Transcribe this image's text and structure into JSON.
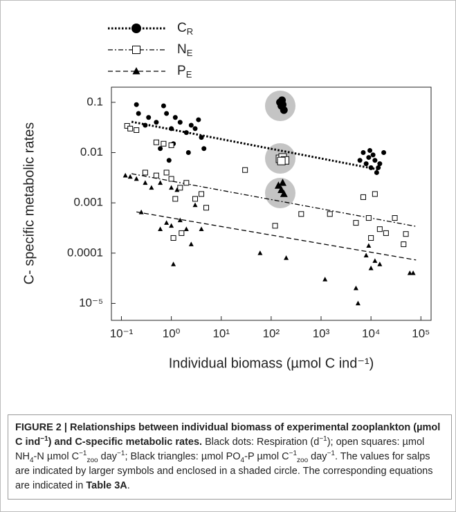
{
  "chart_data": {
    "type": "scatter",
    "x_label": "Individual biomass (µmol C ind⁻¹)",
    "y_label": "C- specific metabolic rates",
    "xscale": "log",
    "yscale": "log",
    "xlim": [
      0.063,
      160000
    ],
    "ylim": [
      4.6e-06,
      0.2
    ],
    "xticks": [
      {
        "value": 0.1,
        "label": "10⁻¹"
      },
      {
        "value": 1,
        "label": "10⁰"
      },
      {
        "value": 10,
        "label": "10¹"
      },
      {
        "value": 100,
        "label": "10²"
      },
      {
        "value": 1000,
        "label": "10³"
      },
      {
        "value": 10000,
        "label": "10⁴"
      },
      {
        "value": 100000,
        "label": "10⁵"
      }
    ],
    "yticks": [
      0.1,
      0.01,
      0.001,
      0.0001,
      {
        "value": 1e-05,
        "label": "10⁻⁵"
      }
    ],
    "legend": "top-left",
    "series": [
      {
        "name": "CR",
        "color": "#000000",
        "marker": "circle",
        "line": "dotted",
        "x": [
          0.2,
          0.22,
          0.3,
          0.35,
          0.5,
          0.7,
          0.8,
          1,
          1.2,
          1.5,
          2,
          2.5,
          3,
          3.5,
          4,
          0.6,
          0.9,
          1.1,
          2.2,
          4.5,
          7000,
          8000,
          9000,
          10000,
          11000,
          12000,
          13000,
          15000,
          18000,
          9500,
          6000,
          14000
        ],
        "values": [
          0.09,
          0.06,
          0.035,
          0.05,
          0.04,
          0.085,
          0.06,
          0.03,
          0.05,
          0.04,
          0.025,
          0.035,
          0.03,
          0.045,
          0.02,
          0.012,
          0.007,
          0.015,
          0.01,
          0.012,
          0.01,
          0.006,
          0.008,
          0.005,
          0.009,
          0.007,
          0.004,
          0.006,
          0.01,
          0.011,
          0.007,
          0.005
        ],
        "salp_x": [
          150,
          160,
          170,
          180,
          165
        ],
        "salp_values": [
          0.1,
          0.085,
          0.09,
          0.07,
          0.11
        ],
        "trend_x": [
          0.16,
          14000
        ],
        "trend_values": [
          0.041,
          0.0046
        ]
      },
      {
        "name": "NE",
        "color": "#000000",
        "marker": "square",
        "line": "dashdot",
        "x": [
          0.13,
          0.15,
          0.2,
          0.5,
          0.7,
          1,
          0.3,
          0.5,
          0.8,
          1,
          1.2,
          1.5,
          2,
          3,
          4,
          5,
          1.1,
          1.6,
          30,
          120,
          400,
          1500,
          5000,
          7000,
          9000,
          10000,
          12000,
          15000,
          20000,
          30000,
          50000,
          45000
        ],
        "values": [
          0.034,
          0.03,
          0.028,
          0.016,
          0.015,
          0.014,
          0.004,
          0.0035,
          0.004,
          0.003,
          0.0012,
          0.002,
          0.0025,
          0.0012,
          0.0015,
          0.0008,
          0.0002,
          0.00025,
          0.0045,
          0.00035,
          0.0006,
          0.0006,
          0.0004,
          0.0013,
          0.0005,
          0.0002,
          0.0015,
          0.0003,
          0.00025,
          0.0005,
          0.00024,
          0.00015
        ],
        "salp_x": [
          150,
          170,
          190,
          160
        ],
        "salp_values": [
          0.0075,
          0.008,
          0.007,
          0.0068
        ],
        "trend_x": [
          0.16,
          80000
        ],
        "trend_values": [
          0.0038,
          0.00034
        ]
      },
      {
        "name": "PE",
        "color": "#000000",
        "marker": "triangle",
        "line": "dashed",
        "x": [
          0.12,
          0.15,
          0.2,
          0.3,
          0.4,
          0.6,
          1,
          1.3,
          0.25,
          0.6,
          0.8,
          1,
          1.5,
          2,
          3,
          4,
          1.1,
          2.5,
          60,
          200,
          1200,
          5000,
          5500,
          8000,
          10000,
          12000,
          15000,
          9000,
          60000,
          70000
        ],
        "values": [
          0.0035,
          0.0033,
          0.003,
          0.0025,
          0.002,
          0.0025,
          0.002,
          0.0018,
          0.00065,
          0.0003,
          0.0004,
          0.00035,
          0.00045,
          0.0003,
          0.0009,
          0.0003,
          6e-05,
          0.00015,
          0.0001,
          8e-05,
          3e-05,
          2e-05,
          1e-05,
          9e-05,
          5e-05,
          7e-05,
          6e-05,
          0.00014,
          4e-05,
          4e-05
        ],
        "salp_x": [
          140,
          160,
          180,
          170
        ],
        "salp_values": [
          0.0022,
          0.0018,
          0.0015,
          0.0025
        ],
        "trend_x": [
          0.2,
          80000
        ],
        "trend_values": [
          0.00066,
          7.3e-05
        ]
      }
    ]
  },
  "caption": [
    {
      "text": "FIGURE 2 | Relationships between individual biomass of experimental zooplankton (µmol C ind",
      "format": "bold"
    },
    {
      "text": "−1",
      "format": "bold-sup"
    },
    {
      "text": ") and C-specific metabolic rates.",
      "format": "bold"
    },
    {
      "text": " Black dots: Respiration (d",
      "format": "normal"
    },
    {
      "text": "−1",
      "format": "sup"
    },
    {
      "text": "); open squares: µmol NH",
      "format": "normal"
    },
    {
      "text": "4",
      "format": "sub"
    },
    {
      "text": "-N µmol C",
      "format": "normal"
    },
    {
      "text": "−1",
      "format": "sup"
    },
    {
      "text": "zoo",
      "format": "sub"
    },
    {
      "text": " day",
      "format": "normal"
    },
    {
      "text": "−1",
      "format": "sup"
    },
    {
      "text": "; Black triangles: µmol PO",
      "format": "normal"
    },
    {
      "text": "4",
      "format": "sub"
    },
    {
      "text": "-P µmol C",
      "format": "normal"
    },
    {
      "text": "−1",
      "format": "sup"
    },
    {
      "text": "zoo",
      "format": "sub"
    },
    {
      "text": " day",
      "format": "normal"
    },
    {
      "text": "−1",
      "format": "sup"
    },
    {
      "text": ". The values for salps are indicated by larger symbols and enclosed in a shaded circle. The corresponding equations are indicated in ",
      "format": "normal"
    },
    {
      "text": "Table 3A",
      "format": "bold"
    },
    {
      "text": ".",
      "format": "normal"
    }
  ]
}
